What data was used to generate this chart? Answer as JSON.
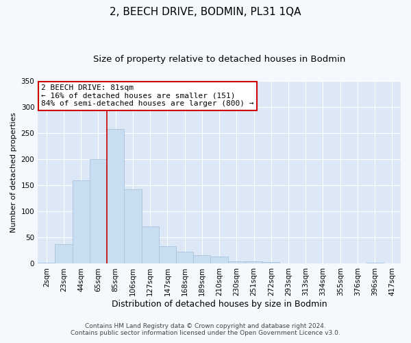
{
  "title": "2, BEECH DRIVE, BODMIN, PL31 1QA",
  "subtitle": "Size of property relative to detached houses in Bodmin",
  "xlabel": "Distribution of detached houses by size in Bodmin",
  "ylabel": "Number of detached properties",
  "bar_labels": [
    "2sqm",
    "23sqm",
    "44sqm",
    "65sqm",
    "85sqm",
    "106sqm",
    "127sqm",
    "147sqm",
    "168sqm",
    "189sqm",
    "210sqm",
    "230sqm",
    "251sqm",
    "272sqm",
    "293sqm",
    "313sqm",
    "334sqm",
    "355sqm",
    "376sqm",
    "396sqm",
    "417sqm"
  ],
  "bar_values": [
    2,
    38,
    160,
    200,
    258,
    142,
    72,
    34,
    23,
    17,
    14,
    5,
    5,
    3,
    1,
    0,
    1,
    0,
    0,
    2,
    0
  ],
  "bar_color": "#c9ddf0",
  "bar_edgecolor": "#a8c4e0",
  "vline_x_index": 4,
  "vline_color": "#cc0000",
  "annotation_text": "2 BEECH DRIVE: 81sqm\n← 16% of detached houses are smaller (151)\n84% of semi-detached houses are larger (800) →",
  "annotation_box_facecolor": "#ffffff",
  "annotation_box_edgecolor": "#cc0000",
  "ylim": [
    0,
    350
  ],
  "yticks": [
    0,
    50,
    100,
    150,
    200,
    250,
    300,
    350
  ],
  "fig_facecolor": "#f5f8fd",
  "plot_bg_color": "#dce8f5",
  "footer_line1": "Contains HM Land Registry data © Crown copyright and database right 2024.",
  "footer_line2": "Contains public sector information licensed under the Open Government Licence v3.0.",
  "title_fontsize": 11,
  "subtitle_fontsize": 9.5,
  "xlabel_fontsize": 9,
  "ylabel_fontsize": 8,
  "tick_fontsize": 7.5,
  "footer_fontsize": 6.5
}
